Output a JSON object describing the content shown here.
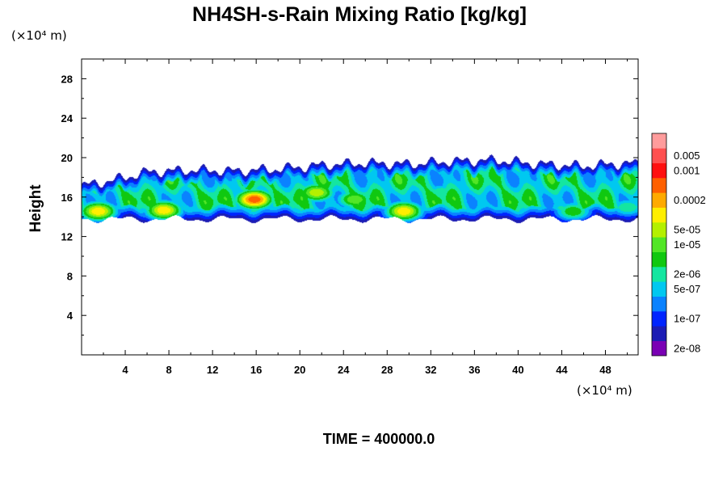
{
  "chart_data": {
    "type": "heatmap",
    "title": "NH4SH-s-Rain Mixing Ratio [kg/kg]",
    "ylabel": "Height",
    "x_unit": "(×10⁴ m)",
    "y_unit": "(×10⁴ m)",
    "xlim": [
      0,
      51
    ],
    "ylim": [
      0,
      30
    ],
    "x_ticks": [
      4,
      8,
      12,
      16,
      20,
      24,
      28,
      32,
      36,
      40,
      44,
      48
    ],
    "y_ticks": [
      4,
      8,
      12,
      16,
      20,
      24,
      28
    ],
    "time_label": "TIME = 400000.0",
    "legend": {
      "placement": "right",
      "levels": [
        "2e-08",
        "1e-07",
        "5e-07",
        "2e-06",
        "1e-05",
        "5e-05",
        "0.0002",
        "0.001",
        "0.005"
      ],
      "colors": [
        "#7a00b4",
        "#1c1cb4",
        "#0024ff",
        "#0a82ff",
        "#00c8f0",
        "#14e6a0",
        "#10c810",
        "#52e626",
        "#b4f000",
        "#ffee00",
        "#ffaa00",
        "#ff6000",
        "#ff1010",
        "#ff5050",
        "#ff9c9c"
      ],
      "labeled_bands": [
        {
          "band": 0,
          "label": "2e-08"
        },
        {
          "band": 2,
          "label": "1e-07"
        },
        {
          "band": 4,
          "label": "5e-07"
        },
        {
          "band": 5,
          "label": "2e-06"
        },
        {
          "band": 7,
          "label": "1e-05"
        },
        {
          "band": 8,
          "label": "5e-05"
        },
        {
          "band": 10,
          "label": "0.0002"
        },
        {
          "band": 12,
          "label": "0.001"
        },
        {
          "band": 13,
          "label": "0.005"
        }
      ]
    },
    "field": {
      "base_height": 13.8,
      "top_height": [
        [
          0,
          17.2
        ],
        [
          3,
          17.8
        ],
        [
          6,
          18.6
        ],
        [
          10,
          18.8
        ],
        [
          14,
          18.7
        ],
        [
          18,
          18.9
        ],
        [
          22,
          19.3
        ],
        [
          26,
          19.5
        ],
        [
          30,
          19.4
        ],
        [
          34,
          19.7
        ],
        [
          38,
          19.8
        ],
        [
          42,
          19.4
        ],
        [
          46,
          19.2
        ],
        [
          50,
          19.5
        ],
        [
          51,
          19.4
        ]
      ],
      "cores": [
        {
          "x": 1.5,
          "y": 14.6,
          "peak": 10
        },
        {
          "x": 7.5,
          "y": 14.7,
          "peak": 10
        },
        {
          "x": 15.8,
          "y": 15.8,
          "peak": 12
        },
        {
          "x": 21.5,
          "y": 16.5,
          "peak": 9
        },
        {
          "x": 25.0,
          "y": 15.8,
          "peak": 8
        },
        {
          "x": 29.5,
          "y": 14.6,
          "peak": 10
        },
        {
          "x": 33.0,
          "y": 16.5,
          "peak": 6
        },
        {
          "x": 38.0,
          "y": 17.5,
          "peak": 4
        },
        {
          "x": 45.0,
          "y": 14.6,
          "peak": 7
        },
        {
          "x": 50.0,
          "y": 15.0,
          "peak": 6
        }
      ]
    }
  }
}
